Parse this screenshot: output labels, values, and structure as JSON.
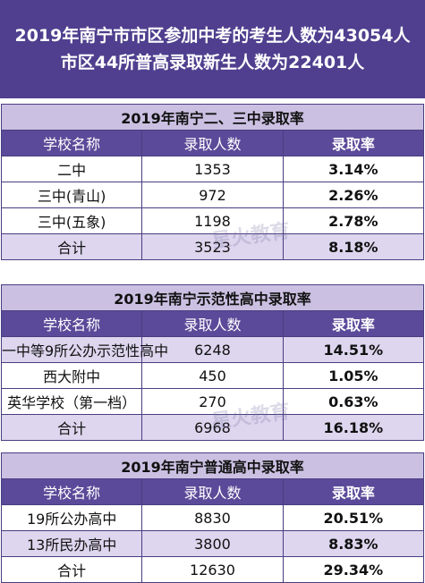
{
  "header": {
    "line1": "2019年南宁市市区参加中考的考生人数为43054人",
    "line2": "市区44所普高录取新生人数为22401人"
  },
  "columns": {
    "school": "学校名称",
    "count": "录取人数",
    "rate": "录取率"
  },
  "watermark": "星火教育",
  "tables": [
    {
      "title": "2019年南宁二、三中录取率",
      "rows": [
        {
          "school": "二中",
          "count": "1353",
          "rate": "3.14%"
        },
        {
          "school": "三中(青山)",
          "count": "972",
          "rate": "2.26%"
        },
        {
          "school": "三中(五象)",
          "count": "1198",
          "rate": "2.78%"
        },
        {
          "school": "合计",
          "count": "3523",
          "rate": "8.18%"
        }
      ]
    },
    {
      "title": "2019年南宁示范性高中录取率",
      "rows": [
        {
          "school": "一中等9所公办示范性高中",
          "count": "6248",
          "rate": "14.51%"
        },
        {
          "school": "西大附中",
          "count": "450",
          "rate": "1.05%"
        },
        {
          "school": "英华学校（第一档）",
          "count": "270",
          "rate": "0.63%"
        },
        {
          "school": "合计",
          "count": "6968",
          "rate": "16.18%"
        }
      ]
    },
    {
      "title": "2019年南宁普通高中录取率",
      "rows": [
        {
          "school": "19所公办高中",
          "count": "8830",
          "rate": "20.51%"
        },
        {
          "school": "13所民办高中",
          "count": "3800",
          "rate": "8.83%"
        },
        {
          "school": "合计",
          "count": "12630",
          "rate": "29.34%"
        }
      ]
    }
  ]
}
